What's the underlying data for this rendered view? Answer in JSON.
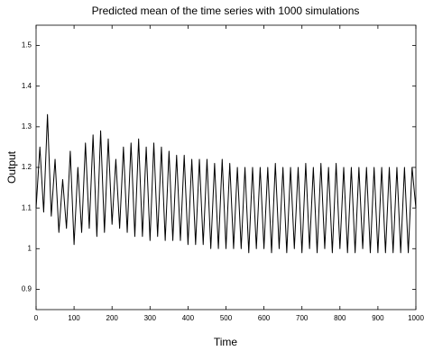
{
  "chart_data": {
    "type": "line",
    "title": "Predicted mean of the time series with 1000 simulations",
    "x_label": "Time",
    "y_label": "Output",
    "color": "#000000",
    "grid": false,
    "xlim": [
      0,
      1000
    ],
    "xticks": [
      0,
      100,
      200,
      300,
      400,
      500,
      600,
      700,
      800,
      900,
      1000
    ],
    "ylim": [
      0.85,
      1.55
    ],
    "yticks": [
      0.9,
      1,
      1.1,
      1.2,
      1.3,
      1.4,
      1.5
    ],
    "x": [
      0,
      10,
      20,
      30,
      40,
      50,
      60,
      70,
      80,
      90,
      100,
      110,
      120,
      130,
      140,
      150,
      160,
      170,
      180,
      190,
      200,
      210,
      220,
      230,
      240,
      250,
      260,
      270,
      280,
      290,
      300,
      310,
      320,
      330,
      340,
      350,
      360,
      370,
      380,
      390,
      400,
      410,
      420,
      430,
      440,
      450,
      460,
      470,
      480,
      490,
      500,
      510,
      520,
      530,
      540,
      550,
      560,
      570,
      580,
      590,
      600,
      610,
      620,
      630,
      640,
      650,
      660,
      670,
      680,
      690,
      700,
      710,
      720,
      730,
      740,
      750,
      760,
      770,
      780,
      790,
      800,
      810,
      820,
      830,
      840,
      850,
      860,
      870,
      880,
      890,
      900,
      910,
      920,
      930,
      940,
      950,
      960,
      970,
      980,
      990,
      1000
    ],
    "values": [
      1.1,
      1.25,
      1.09,
      1.33,
      1.08,
      1.22,
      1.04,
      1.17,
      1.05,
      1.24,
      1.01,
      1.2,
      1.04,
      1.26,
      1.05,
      1.28,
      1.03,
      1.29,
      1.04,
      1.27,
      1.06,
      1.22,
      1.05,
      1.25,
      1.04,
      1.26,
      1.03,
      1.27,
      1.03,
      1.25,
      1.02,
      1.26,
      1.03,
      1.25,
      1.02,
      1.24,
      1.02,
      1.23,
      1.02,
      1.23,
      1.01,
      1.22,
      1.01,
      1.22,
      1.01,
      1.22,
      1.0,
      1.21,
      1.0,
      1.22,
      1.0,
      1.21,
      1.0,
      1.2,
      1.0,
      1.2,
      0.99,
      1.2,
      1.0,
      1.2,
      1.0,
      1.2,
      0.99,
      1.21,
      1.0,
      1.2,
      0.99,
      1.2,
      1.0,
      1.2,
      0.99,
      1.21,
      1.0,
      1.2,
      0.99,
      1.21,
      1.0,
      1.2,
      0.99,
      1.21,
      1.0,
      1.2,
      0.99,
      1.2,
      0.99,
      1.2,
      1.0,
      1.2,
      0.99,
      1.2,
      0.99,
      1.2,
      0.99,
      1.2,
      0.99,
      1.2,
      0.99,
      1.2,
      0.99,
      1.2,
      1.1
    ]
  }
}
